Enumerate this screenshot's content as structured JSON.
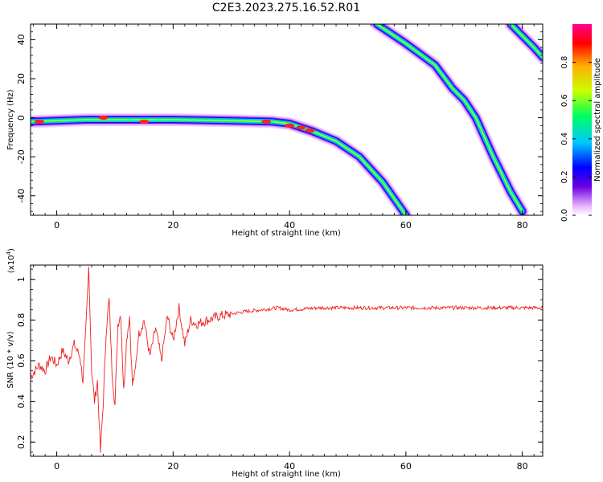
{
  "figure": {
    "title": "C2E3.2023.275.16.52.R01"
  },
  "chart_data": [
    {
      "type": "heatmap",
      "xlabel": "Height of straight line (km)",
      "ylabel": "Frequency (Hz)",
      "xlim": [
        -4.5,
        83.5
      ],
      "ylim": [
        -50,
        48
      ],
      "xticks": [
        0,
        20,
        40,
        60,
        80
      ],
      "yticks": [
        -40,
        -20,
        0,
        20,
        40
      ],
      "colorbar": {
        "label": "Normalized spectral amplitude",
        "range": [
          0.0,
          1.0
        ],
        "ticks": [
          0.0,
          0.2,
          0.4,
          0.6,
          0.8
        ],
        "colormap": [
          "#ffffff",
          "#e8b0ff",
          "#6b00e0",
          "#0000ff",
          "#00c8ff",
          "#00ff60",
          "#c8ff00",
          "#ffb000",
          "#ff0000",
          "#ff0090"
        ]
      },
      "ridges": [
        {
          "points": [
            [
              -4.5,
              -2
            ],
            [
              0,
              -1.5
            ],
            [
              5,
              -1
            ],
            [
              10,
              -1
            ],
            [
              20,
              -1
            ],
            [
              30,
              -1.5
            ],
            [
              37,
              -2
            ],
            [
              40,
              -3
            ],
            [
              44,
              -7
            ],
            [
              48,
              -12
            ],
            [
              52,
              -20
            ],
            [
              56,
              -33
            ],
            [
              60,
              -50
            ]
          ],
          "peaks": [
            [
              -3,
              -2
            ],
            [
              8,
              0
            ],
            [
              15,
              -2
            ],
            [
              36,
              -2
            ],
            [
              40,
              -4
            ],
            [
              42,
              -5
            ],
            [
              43.5,
              -6.5
            ]
          ]
        },
        {
          "points": [
            [
              55,
              48
            ],
            [
              60,
              38
            ],
            [
              65,
              27
            ],
            [
              68,
              15
            ],
            [
              70,
              9
            ],
            [
              72,
              0
            ],
            [
              75,
              -20
            ],
            [
              78,
              -38
            ],
            [
              80,
              -48
            ]
          ],
          "peaks": []
        },
        {
          "points": [
            [
              78,
              48
            ],
            [
              80,
              42
            ],
            [
              82,
              36
            ],
            [
              83.5,
              31
            ]
          ],
          "peaks": []
        }
      ]
    },
    {
      "type": "line",
      "xlabel": "Height of straight line (km)",
      "ylabel": "SNR (10 * v/v)",
      "y_multiplier": "(x10",
      "y_multiplier_exponent": "4",
      "y_multiplier_close": ")",
      "xlim": [
        -4.5,
        83.5
      ],
      "ylim": [
        0.13,
        1.07
      ],
      "xticks": [
        0,
        20,
        40,
        60,
        80
      ],
      "yticks": [
        0.2,
        0.4,
        0.6,
        0.8,
        1.0
      ],
      "series": [
        {
          "color": "#ee2222",
          "x": [
            -4.5,
            -3,
            -2,
            -1,
            0,
            1,
            2,
            3,
            4,
            4.5,
            5,
            5.5,
            6,
            6.5,
            7,
            7.5,
            8,
            8.5,
            9,
            9.5,
            10,
            10.5,
            11,
            11.5,
            12,
            12.5,
            13,
            13.5,
            14,
            15,
            16,
            17,
            18,
            19,
            20,
            21,
            22,
            23,
            24,
            26,
            28,
            30,
            32,
            35,
            38,
            40,
            45,
            50,
            55,
            60,
            65,
            70,
            75,
            80,
            83.5
          ],
          "y": [
            0.52,
            0.58,
            0.55,
            0.62,
            0.58,
            0.65,
            0.6,
            0.68,
            0.62,
            0.5,
            0.75,
            1.06,
            0.55,
            0.4,
            0.5,
            0.15,
            0.4,
            0.75,
            0.9,
            0.55,
            0.38,
            0.78,
            0.83,
            0.45,
            0.7,
            0.82,
            0.48,
            0.55,
            0.72,
            0.8,
            0.62,
            0.76,
            0.6,
            0.82,
            0.7,
            0.86,
            0.68,
            0.8,
            0.78,
            0.8,
            0.82,
            0.83,
            0.84,
            0.85,
            0.86,
            0.85,
            0.86,
            0.86,
            0.86,
            0.86,
            0.86,
            0.86,
            0.86,
            0.86,
            0.86
          ]
        }
      ]
    }
  ]
}
